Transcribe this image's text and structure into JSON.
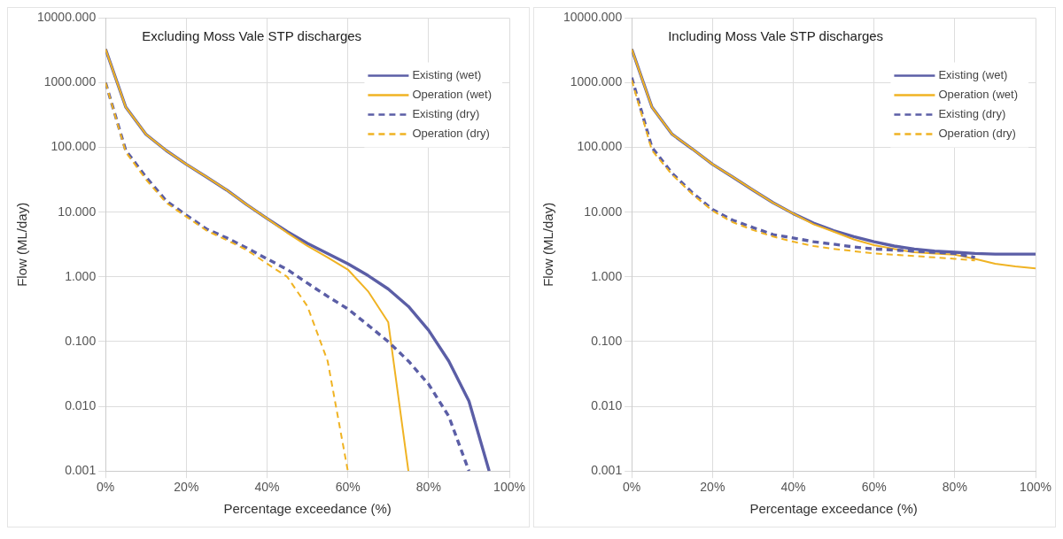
{
  "chart_data": [
    {
      "type": "line",
      "title": "Excluding Moss Vale STP discharges",
      "xlabel": "Percentage exceedance (%)",
      "ylabel": "Flow (ML/day)",
      "log": "y",
      "grid": true,
      "legend": "top right",
      "xlim": [
        0,
        100
      ],
      "xticks": [
        {
          "value": 0,
          "label": "0%"
        },
        {
          "value": 20,
          "label": "20%"
        },
        {
          "value": 40,
          "label": "40%"
        },
        {
          "value": 60,
          "label": "60%"
        },
        {
          "value": 80,
          "label": "80%"
        },
        {
          "value": 100,
          "label": "100%"
        }
      ],
      "ylim": [
        0.001,
        10000
      ],
      "yticks": [
        {
          "value": 0.001,
          "label": "0.001"
        },
        {
          "value": 0.01,
          "label": "0.010"
        },
        {
          "value": 0.1,
          "label": "0.100"
        },
        {
          "value": 1,
          "label": "1.000"
        },
        {
          "value": 10,
          "label": "10.000"
        },
        {
          "value": 100,
          "label": "100.000"
        },
        {
          "value": 1000,
          "label": "1000.000"
        },
        {
          "value": 10000,
          "label": "10000.000"
        }
      ],
      "series": [
        {
          "name": "Existing (wet)",
          "color": "#5b5ea6",
          "line_style": "solid",
          "x": [
            0,
            5,
            10,
            15,
            20,
            25,
            30,
            35,
            40,
            45,
            50,
            55,
            60,
            65,
            70,
            75,
            80,
            85,
            90,
            95
          ],
          "values": [
            3300,
            420,
            160,
            90,
            55,
            35,
            22,
            13,
            8,
            5,
            3.3,
            2.3,
            1.6,
            1.05,
            0.65,
            0.35,
            0.15,
            0.05,
            0.012,
            0.001
          ]
        },
        {
          "name": "Operation (wet)",
          "color": "#f0b323",
          "line_style": "solid",
          "x": [
            0,
            5,
            10,
            15,
            20,
            25,
            30,
            35,
            40,
            45,
            50,
            55,
            60,
            65,
            70,
            75
          ],
          "values": [
            3300,
            420,
            160,
            90,
            55,
            35,
            22,
            13,
            8,
            4.8,
            3.0,
            2.0,
            1.3,
            0.6,
            0.2,
            0.001
          ]
        },
        {
          "name": "Existing (dry)",
          "color": "#5b5ea6",
          "line_style": "dashed",
          "x": [
            0,
            5,
            10,
            15,
            20,
            25,
            30,
            35,
            40,
            45,
            50,
            55,
            60,
            65,
            70,
            75,
            80,
            85,
            90
          ],
          "values": [
            1000,
            90,
            35,
            15,
            9,
            5.5,
            4,
            2.8,
            1.9,
            1.3,
            0.8,
            0.5,
            0.32,
            0.18,
            0.1,
            0.05,
            0.022,
            0.007,
            0.001
          ]
        },
        {
          "name": "Operation (dry)",
          "color": "#f0b323",
          "line_style": "dashed",
          "x": [
            0,
            5,
            10,
            15,
            20,
            25,
            30,
            35,
            40,
            45,
            50,
            55,
            60
          ],
          "values": [
            1000,
            85,
            32,
            14,
            8.5,
            5.2,
            3.7,
            2.6,
            1.6,
            1.0,
            0.35,
            0.05,
            0.001
          ]
        }
      ]
    },
    {
      "type": "line",
      "title": "Including Moss Vale STP discharges",
      "xlabel": "Percentage exceedance (%)",
      "ylabel": "Flow (ML/day)",
      "log": "y",
      "grid": true,
      "legend": "top right",
      "xlim": [
        0,
        100
      ],
      "xticks": [
        {
          "value": 0,
          "label": "0%"
        },
        {
          "value": 20,
          "label": "20%"
        },
        {
          "value": 40,
          "label": "40%"
        },
        {
          "value": 60,
          "label": "60%"
        },
        {
          "value": 80,
          "label": "80%"
        },
        {
          "value": 100,
          "label": "100%"
        }
      ],
      "ylim": [
        0.001,
        10000
      ],
      "yticks": [
        {
          "value": 0.001,
          "label": "0.001"
        },
        {
          "value": 0.01,
          "label": "0.010"
        },
        {
          "value": 0.1,
          "label": "0.100"
        },
        {
          "value": 1,
          "label": "1.000"
        },
        {
          "value": 10,
          "label": "10.000"
        },
        {
          "value": 100,
          "label": "100.000"
        },
        {
          "value": 1000,
          "label": "1000.000"
        },
        {
          "value": 10000,
          "label": "10000.000"
        }
      ],
      "series": [
        {
          "name": "Existing (wet)",
          "color": "#5b5ea6",
          "line_style": "solid",
          "x": [
            0,
            5,
            10,
            15,
            20,
            25,
            30,
            35,
            40,
            45,
            50,
            55,
            60,
            65,
            70,
            75,
            80,
            85,
            90,
            95,
            100
          ],
          "values": [
            3300,
            420,
            160,
            95,
            55,
            35,
            22,
            14,
            9.5,
            6.8,
            5.2,
            4.2,
            3.5,
            3,
            2.7,
            2.5,
            2.4,
            2.3,
            2.25,
            2.25,
            2.25
          ]
        },
        {
          "name": "Operation (wet)",
          "color": "#f0b323",
          "line_style": "solid",
          "x": [
            0,
            5,
            10,
            15,
            20,
            25,
            30,
            35,
            40,
            45,
            50,
            55,
            60,
            65,
            70,
            75,
            80,
            85,
            90,
            95,
            100
          ],
          "values": [
            3300,
            420,
            160,
            95,
            55,
            35,
            22,
            14,
            9.5,
            6.5,
            5,
            3.8,
            3.1,
            2.7,
            2.4,
            2.3,
            2.2,
            1.9,
            1.6,
            1.45,
            1.35
          ]
        },
        {
          "name": "Existing (dry)",
          "color": "#5b5ea6",
          "line_style": "dashed",
          "x": [
            0,
            5,
            10,
            15,
            20,
            25,
            30,
            35,
            40,
            45,
            50,
            55,
            60,
            65,
            70,
            75,
            80,
            85
          ],
          "values": [
            1200,
            100,
            40,
            20,
            11,
            7.5,
            5.8,
            4.5,
            4,
            3.5,
            3.2,
            2.9,
            2.7,
            2.6,
            2.5,
            2.4,
            2.3,
            2.0
          ]
        },
        {
          "name": "Operation (dry)",
          "color": "#f0b323",
          "line_style": "dashed",
          "x": [
            0,
            5,
            10,
            15,
            20,
            25,
            30,
            35,
            40,
            45,
            50,
            55,
            60,
            65,
            70,
            75,
            80,
            85
          ],
          "values": [
            1100,
            90,
            38,
            19,
            10.5,
            7,
            5.3,
            4.2,
            3.5,
            3,
            2.7,
            2.5,
            2.3,
            2.2,
            2.1,
            2.0,
            1.9,
            1.8
          ]
        }
      ]
    }
  ]
}
